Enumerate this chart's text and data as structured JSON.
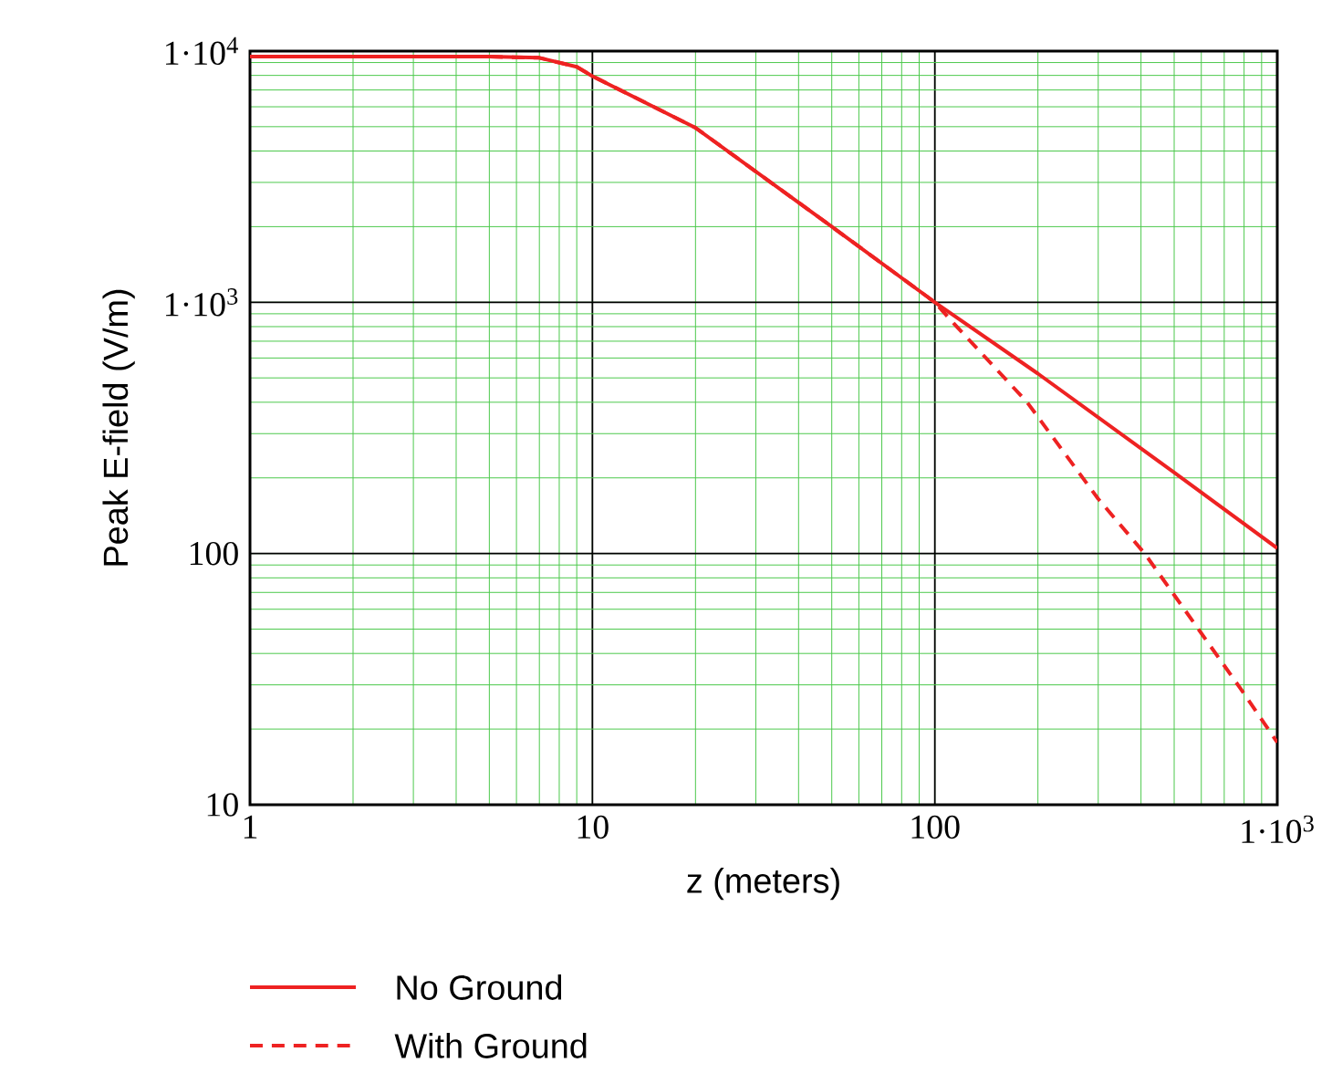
{
  "chart_data": {
    "type": "line",
    "xlabel": "z (meters)",
    "ylabel": "Peak E-field (V/m)",
    "log": "xy",
    "grid": true,
    "legend": "bottom left",
    "marker": "none",
    "xlim": [
      1,
      1000
    ],
    "ylim": [
      10,
      10000
    ],
    "xticks": [
      1,
      10,
      100,
      {
        "value": 1000,
        "label": "1·10$^{3}$"
      }
    ],
    "yticks": [
      10,
      100,
      {
        "value": 1000,
        "label": "1·10$^{3}$"
      },
      {
        "value": 10000,
        "label": "1·10$^{4}$"
      }
    ],
    "series": [
      {
        "name": "No Ground",
        "color": "#ee2222",
        "line_style": "solid",
        "x": [
          1,
          5,
          7,
          9,
          10,
          20,
          50,
          100,
          200,
          500,
          1000
        ],
        "values": [
          9500,
          9500,
          9400,
          8650,
          7950,
          4950,
          2000,
          1000,
          520,
          210,
          105
        ]
      },
      {
        "name": "With Ground",
        "color": "#ee2222",
        "line_style": "dashed",
        "x": [
          1,
          5,
          7,
          9,
          10,
          20,
          50,
          100,
          114,
          186,
          300,
          410,
          560,
          781,
          1000
        ],
        "values": [
          9500,
          9500,
          9400,
          8650,
          7950,
          4950,
          2000,
          1000,
          819,
          400,
          165,
          100,
          55,
          29,
          17.7
        ]
      }
    ]
  }
}
